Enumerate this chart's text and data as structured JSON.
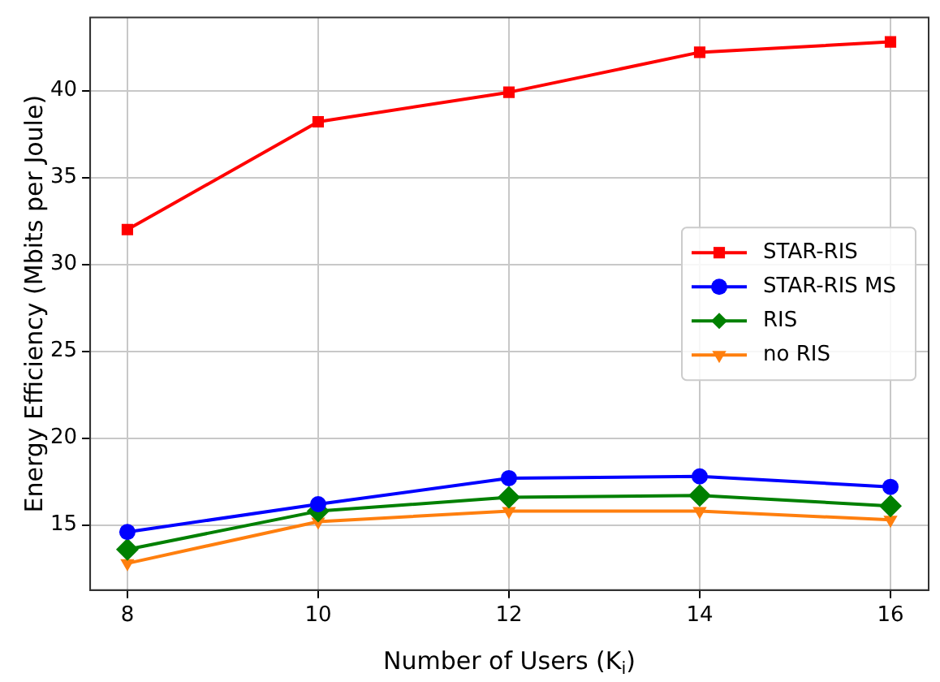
{
  "chart_data": {
    "type": "line",
    "xlabel": "Number of Users (K$_{i}$)",
    "ylabel": "Energy Efficiency (Mbits per Joule)",
    "x": [
      8,
      10,
      12,
      14,
      16
    ],
    "xlim": [
      7.61,
      16.4
    ],
    "xticks": [
      8,
      10,
      12,
      14,
      16
    ],
    "ylim": [
      11.26,
      44.2
    ],
    "yticks": [
      15,
      20,
      25,
      30,
      35,
      40
    ],
    "grid": true,
    "legend": "center right",
    "line_style": "solid",
    "series": [
      {
        "name": "STAR-RIS",
        "color": "#ff0000",
        "marker": "square",
        "values": [
          32.0,
          38.2,
          39.9,
          42.2,
          42.8
        ]
      },
      {
        "name": "STAR-RIS MS",
        "color": "#0000ff",
        "marker": "circle",
        "values": [
          14.6,
          16.2,
          17.7,
          17.8,
          17.2
        ]
      },
      {
        "name": "RIS",
        "color": "#008000",
        "marker": "diamond",
        "values": [
          13.6,
          15.8,
          16.6,
          16.7,
          16.1
        ]
      },
      {
        "name": "no RIS",
        "color": "#ff7f0e",
        "marker": "triangle",
        "values": [
          12.8,
          15.2,
          15.8,
          15.8,
          15.3
        ]
      }
    ]
  }
}
